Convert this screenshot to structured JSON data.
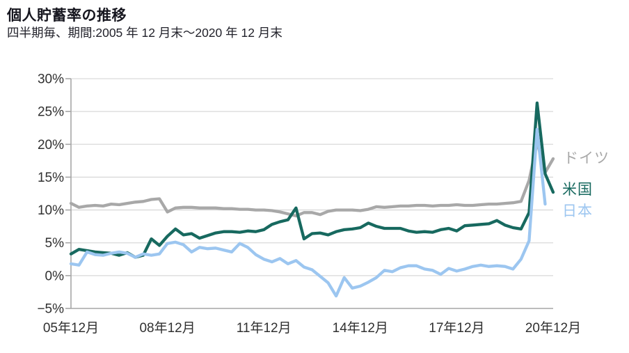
{
  "header": {
    "title": "個人貯蓄率の推移",
    "subtitle": "四半期毎、期間:2005 年 12 月末〜2020 年 12 月末"
  },
  "chart_data": {
    "type": "line",
    "title": "個人貯蓄率の推移",
    "subtitle": "四半期毎、期間:2005 年 12 月末〜2020 年 12 月末",
    "x_unit": "quarter",
    "x_range_text": "2005年12月末〜2020年12月末",
    "ylim": [
      -5,
      30
    ],
    "grid": "horizontal",
    "legend_position": "right-of-line-ends",
    "colors": {
      "grid_line": "#d9d9d9",
      "axis_line": "#a6a6a6",
      "tick_text": "#303030"
    },
    "y_axis": {
      "ticks": [
        {
          "label": "30%",
          "value": 30
        },
        {
          "label": "25%",
          "value": 25
        },
        {
          "label": "20%",
          "value": 20
        },
        {
          "label": "15%",
          "value": 15
        },
        {
          "label": "10%",
          "value": 10
        },
        {
          "label": "5%",
          "value": 5
        },
        {
          "label": "0%",
          "value": 0
        },
        {
          "label": "−5%",
          "value": -5
        }
      ]
    },
    "x_axis": {
      "labels": [
        "05年12月",
        "08年12月",
        "11年12月",
        "14年12月",
        "17年12月",
        "20年12月"
      ],
      "positions": [
        0,
        12,
        24,
        36,
        48,
        60
      ],
      "total_quarters": 60
    },
    "series": [
      {
        "id": "germany",
        "name": "ドイツ",
        "color": "#a8a8a8",
        "start_quarter": 0,
        "values": [
          11.0,
          10.4,
          10.6,
          10.7,
          10.6,
          10.9,
          10.8,
          11.0,
          11.2,
          11.3,
          11.6,
          11.7,
          9.7,
          10.3,
          10.4,
          10.4,
          10.3,
          10.3,
          10.3,
          10.2,
          10.2,
          10.1,
          10.1,
          10.0,
          10.0,
          9.9,
          9.7,
          9.4,
          9.1,
          9.6,
          9.6,
          9.3,
          9.8,
          10.0,
          10.0,
          10.0,
          9.9,
          10.1,
          10.5,
          10.4,
          10.5,
          10.6,
          10.6,
          10.7,
          10.7,
          10.6,
          10.7,
          10.7,
          10.8,
          10.7,
          10.7,
          10.8,
          10.9,
          10.9,
          11.0,
          11.1,
          11.3,
          14.5,
          20.3,
          15.7,
          17.8
        ]
      },
      {
        "id": "us",
        "name": "米国",
        "color": "#17695f",
        "start_quarter": 0,
        "values": [
          3.3,
          4.0,
          3.8,
          3.6,
          3.5,
          3.4,
          3.1,
          3.5,
          2.8,
          3.1,
          5.6,
          4.6,
          6.0,
          7.1,
          6.2,
          6.4,
          5.7,
          6.1,
          6.5,
          6.7,
          6.7,
          6.6,
          6.8,
          6.7,
          7.0,
          7.8,
          8.2,
          8.5,
          10.3,
          5.6,
          6.4,
          6.5,
          6.2,
          6.7,
          7.0,
          7.1,
          7.3,
          8.0,
          7.5,
          7.2,
          7.2,
          7.2,
          6.8,
          6.6,
          6.7,
          6.6,
          7.0,
          7.2,
          6.8,
          7.6,
          7.7,
          7.8,
          7.9,
          8.4,
          7.7,
          7.3,
          7.1,
          9.6,
          26.3,
          15.5,
          12.7
        ]
      },
      {
        "id": "japan",
        "name": "日本",
        "color": "#9cc6f0",
        "start_quarter": 0,
        "values": [
          1.8,
          1.6,
          3.6,
          3.2,
          3.1,
          3.4,
          3.6,
          3.4,
          2.8,
          3.3,
          3.1,
          3.3,
          4.9,
          5.1,
          4.7,
          3.6,
          4.3,
          4.1,
          4.2,
          3.9,
          3.6,
          4.9,
          4.3,
          3.2,
          2.5,
          2.1,
          2.6,
          1.8,
          2.3,
          1.3,
          0.9,
          -0.1,
          -1.1,
          -3.1,
          -0.3,
          -1.9,
          -1.6,
          -1.0,
          -0.3,
          0.8,
          0.6,
          1.2,
          1.5,
          1.5,
          1.0,
          0.8,
          0.2,
          1.1,
          0.7,
          1.0,
          1.4,
          1.6,
          1.4,
          1.5,
          1.4,
          1.0,
          2.5,
          5.3,
          22.3,
          10.9
        ]
      }
    ]
  }
}
